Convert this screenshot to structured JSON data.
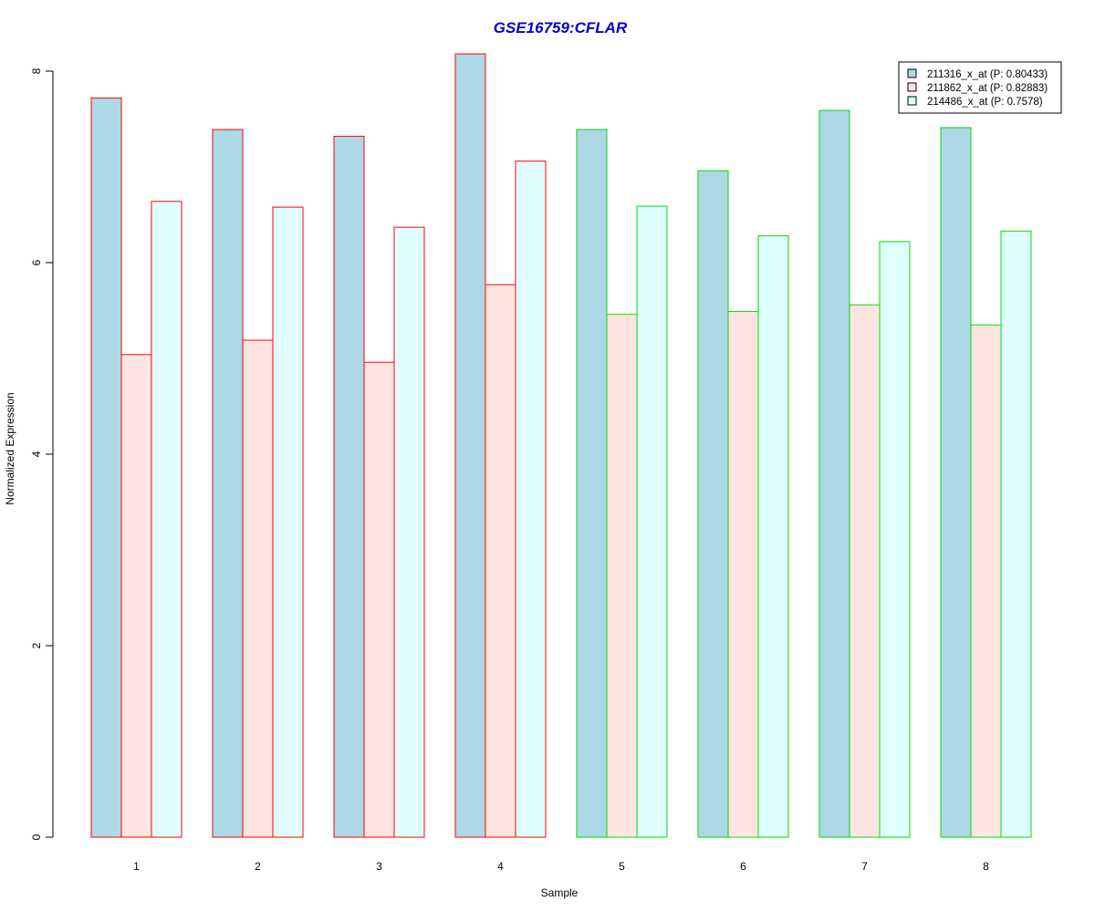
{
  "chart_data": {
    "type": "bar",
    "title": "GSE16759:CFLAR",
    "xlabel": "Sample",
    "ylabel": "Normalized Expression",
    "categories": [
      "1",
      "2",
      "3",
      "4",
      "5",
      "6",
      "7",
      "8"
    ],
    "yticks": [
      "0",
      "2",
      "4",
      "6",
      "8"
    ],
    "ylim": [
      0,
      8.2
    ],
    "grid": false,
    "legend_position": "top-right",
    "series": [
      {
        "name": "211316_x_at (P: 0.80433)",
        "fill": "#add8e6",
        "values": [
          7.72,
          7.39,
          7.32,
          8.18,
          7.39,
          6.96,
          7.59,
          7.41
        ]
      },
      {
        "name": "211862_x_at (P: 0.82883)",
        "fill": "#ffe4e1",
        "values": [
          5.04,
          5.19,
          4.96,
          5.77,
          5.46,
          5.49,
          5.56,
          5.35
        ]
      },
      {
        "name": "214486_x_at (P: 0.7578)",
        "fill": "#e0ffff",
        "values": [
          6.64,
          6.58,
          6.37,
          7.06,
          6.59,
          6.28,
          6.22,
          6.33
        ]
      }
    ],
    "group_border_colors": [
      "#ff0000",
      "#ff0000",
      "#ff0000",
      "#ff0000",
      "#00dd00",
      "#00dd00",
      "#00dd00",
      "#00dd00"
    ],
    "title_color": "#0000cc"
  }
}
